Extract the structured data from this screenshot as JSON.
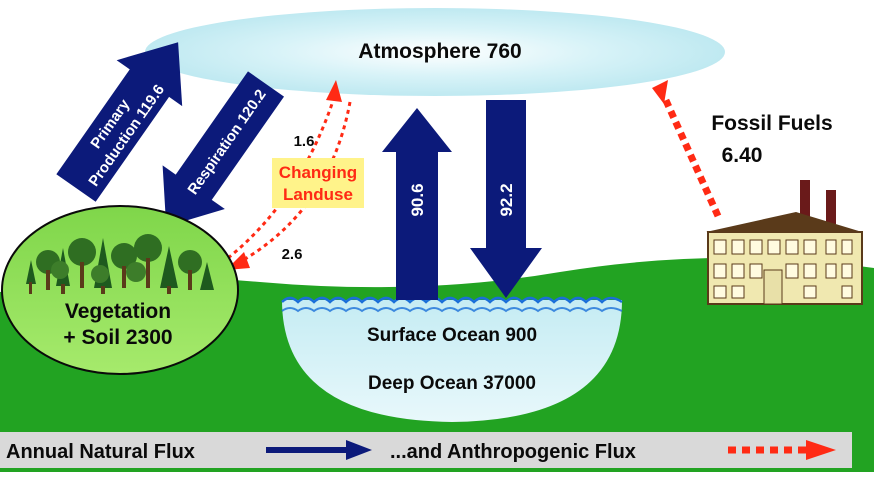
{
  "reservoirs": {
    "atmosphere": "Atmosphere 760",
    "fossil_fuels_name": "Fossil Fuels",
    "fossil_fuels_value": "6.40",
    "vegetation_line1": "Vegetation",
    "vegetation_line2": "+ Soil 2300",
    "surface_ocean": "Surface Ocean 900",
    "deep_ocean": "Deep Ocean 37000"
  },
  "fluxes": {
    "primary_line1": "Primary",
    "primary_line2": "Production 119.6",
    "respiration": "Respiration 120.2",
    "ocean_up": "90.6",
    "ocean_down": "92.2",
    "landuse_up": "1.6",
    "landuse_down": "2.6",
    "landuse_line1": "Changing",
    "landuse_line2": "Landuse"
  },
  "legend": {
    "natural": "Annual Natural Flux",
    "anthropogenic": "...and Anthropogenic Flux"
  },
  "colors": {
    "natural_arrow": "#0c1a7a",
    "anthropogenic_arrow": "#ff2a14",
    "landuse_label": "#ff2a14",
    "landuse_bg": "#fff38a",
    "ground": "#1f9e1f",
    "ocean": "#cdeef2",
    "sky": "#ffffff"
  }
}
